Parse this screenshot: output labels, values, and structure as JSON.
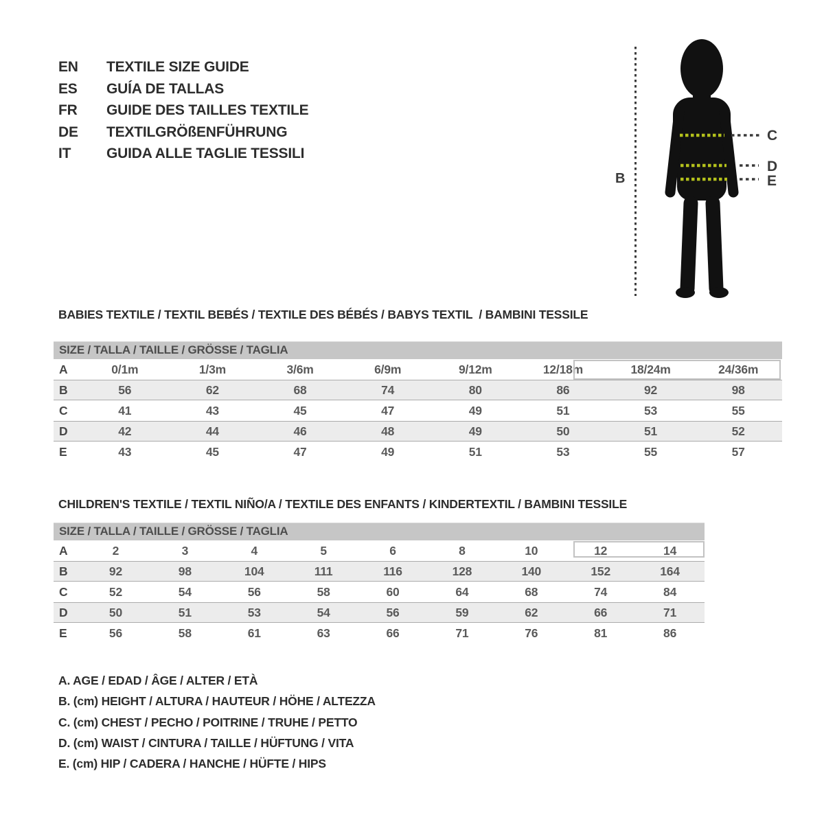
{
  "title_block": {
    "languages": [
      {
        "code": "EN",
        "label": "TEXTILE SIZE GUIDE"
      },
      {
        "code": "ES",
        "label": "GUÍA DE TALLAS"
      },
      {
        "code": "FR",
        "label": "GUIDE DES TAILLES TEXTILE"
      },
      {
        "code": "DE",
        "label": "TEXTILGRÖßENFÜHRUNG"
      },
      {
        "code": "IT",
        "label": "GUIDA ALLE TAGLIE TESSILI"
      }
    ]
  },
  "figure": {
    "labels": {
      "height": "B",
      "chest": "C",
      "waist": "D",
      "hip": "E"
    }
  },
  "babies": {
    "heading": "BABIES TEXTILE / TEXTIL BEBÉS / TEXTILE DES BÉBÉS / BABYS TEXTIL  / BAMBINI TESSILE",
    "size_header": "SIZE / TALLA / TAILLE / GRÖSSE / TAGLIA",
    "rows": [
      {
        "label": "A",
        "values": [
          "0/1m",
          "1/3m",
          "3/6m",
          "6/9m",
          "9/12m",
          "12/18m",
          "18/24m",
          "24/36m"
        ]
      },
      {
        "label": "B",
        "values": [
          "56",
          "62",
          "68",
          "74",
          "80",
          "86",
          "92",
          "98"
        ]
      },
      {
        "label": "C",
        "values": [
          "41",
          "43",
          "45",
          "47",
          "49",
          "51",
          "53",
          "55"
        ]
      },
      {
        "label": "D",
        "values": [
          "42",
          "44",
          "46",
          "48",
          "49",
          "50",
          "51",
          "52"
        ]
      },
      {
        "label": "E",
        "values": [
          "43",
          "45",
          "47",
          "49",
          "51",
          "53",
          "55",
          "57"
        ]
      }
    ]
  },
  "children": {
    "heading": "CHILDREN'S TEXTILE / TEXTIL NIÑO/A / TEXTILE DES ENFANTS / KINDERTEXTIL / BAMBINI TESSILE",
    "size_header": "SIZE / TALLA / TAILLE / GRÖSSE / TAGLIA",
    "rows": [
      {
        "label": "A",
        "values": [
          "2",
          "3",
          "4",
          "5",
          "6",
          "8",
          "10",
          "12",
          "14"
        ]
      },
      {
        "label": "B",
        "values": [
          "92",
          "98",
          "104",
          "111",
          "116",
          "128",
          "140",
          "152",
          "164"
        ]
      },
      {
        "label": "C",
        "values": [
          "52",
          "54",
          "56",
          "58",
          "60",
          "64",
          "68",
          "74",
          "84"
        ]
      },
      {
        "label": "D",
        "values": [
          "50",
          "51",
          "53",
          "54",
          "56",
          "59",
          "62",
          "66",
          "71"
        ]
      },
      {
        "label": "E",
        "values": [
          "56",
          "58",
          "61",
          "63",
          "66",
          "71",
          "76",
          "81",
          "86"
        ]
      }
    ]
  },
  "legend": {
    "lines": [
      "A. AGE / EDAD / ÂGE / ALTER / ETÀ",
      "B. (cm) HEIGHT / ALTURA / HAUTEUR / HÖHE / ALTEZZA",
      "C. (cm) CHEST / PECHO / POITRINE / TRUHE / PETTO",
      "D. (cm) WAIST / CINTURA / TAILLE / HÜFTUNG / VITA",
      "E. (cm) HIP / CADERA / HANCHE / HÜFTE / HIPS"
    ]
  },
  "colors": {
    "header_bar": "#c6c6c6",
    "row_band": "#ececec",
    "table_line": "#ababab",
    "text": "#2d2d2d",
    "muted_text": "#5a5a5a",
    "accent_dots": "#b4c11c",
    "silhouette": "#111111",
    "highlight_border": "#c2c2c2"
  }
}
